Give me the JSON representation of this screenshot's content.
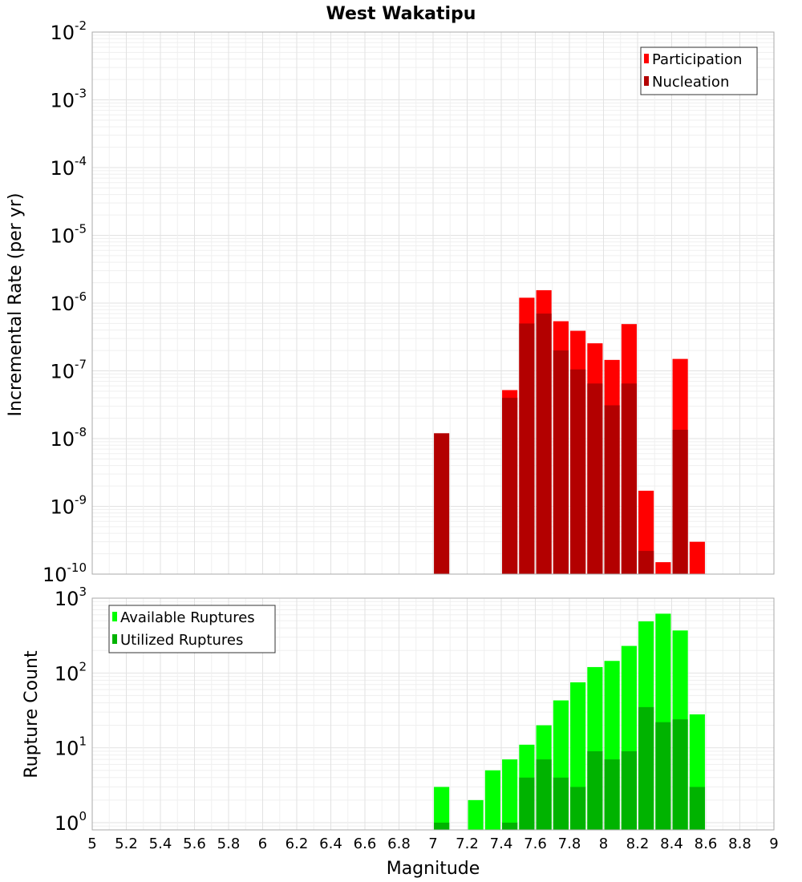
{
  "chart_data": [
    {
      "type": "bar",
      "title": "West Wakatipu",
      "ylabel": "Incremental Rate (per yr)",
      "xlabel": "",
      "yscale": "log",
      "ylim": [
        1e-10,
        0.01
      ],
      "xlim": [
        5,
        9
      ],
      "y_ticks": [
        {
          "base": "10",
          "exp": "-2",
          "value": 0.01
        },
        {
          "base": "10",
          "exp": "-3",
          "value": 0.001
        },
        {
          "base": "10",
          "exp": "-4",
          "value": 0.0001
        },
        {
          "base": "10",
          "exp": "-5",
          "value": 1e-05
        },
        {
          "base": "10",
          "exp": "-6",
          "value": 1e-06
        },
        {
          "base": "10",
          "exp": "-7",
          "value": 1e-07
        },
        {
          "base": "10",
          "exp": "-8",
          "value": 1e-08
        },
        {
          "base": "10",
          "exp": "-9",
          "value": 1e-09
        },
        {
          "base": "10",
          "exp": "-10",
          "value": 1e-10
        }
      ],
      "grid": true,
      "legend_position": "top-right",
      "bar_width": 0.09,
      "series": [
        {
          "name": "Participation",
          "color": "#ff0000",
          "x": [
            7.45,
            7.55,
            7.65,
            7.75,
            7.85,
            7.95,
            8.05,
            8.15,
            8.25,
            8.35,
            8.45,
            8.55
          ],
          "values": [
            5.2e-08,
            1.2e-06,
            1.55e-06,
            5.4e-07,
            3.9e-07,
            2.55e-07,
            1.45e-07,
            4.9e-07,
            1.7e-09,
            1.5e-10,
            1.5e-07,
            3e-10
          ]
        },
        {
          "name": "Nucleation",
          "color": "#b30000",
          "x": [
            7.05,
            7.45,
            7.55,
            7.65,
            7.75,
            7.85,
            7.95,
            8.05,
            8.15,
            8.25,
            8.45
          ],
          "values": [
            1.2e-08,
            4e-08,
            5e-07,
            7e-07,
            2e-07,
            1.05e-07,
            6.5e-08,
            3.1e-08,
            6.5e-08,
            2.2e-10,
            1.35e-08
          ]
        }
      ]
    },
    {
      "type": "bar",
      "title": "",
      "ylabel": "Rupture Count",
      "xlabel": "Magnitude",
      "yscale": "log",
      "ylim": [
        0.8,
        1000
      ],
      "xlim": [
        5,
        9
      ],
      "x_ticks": [
        "5",
        "5.2",
        "5.4",
        "5.6",
        "5.8",
        "6",
        "6.2",
        "6.4",
        "6.6",
        "6.8",
        "7",
        "7.2",
        "7.4",
        "7.6",
        "7.8",
        "8",
        "8.2",
        "8.4",
        "8.6",
        "8.8",
        "9"
      ],
      "y_ticks": [
        {
          "base": "10",
          "exp": "3",
          "value": 1000
        },
        {
          "base": "10",
          "exp": "2",
          "value": 100
        },
        {
          "base": "10",
          "exp": "1",
          "value": 10
        },
        {
          "base": "10",
          "exp": "0",
          "value": 1
        }
      ],
      "grid": true,
      "legend_position": "top-left",
      "bar_width": 0.09,
      "series": [
        {
          "name": "Available Ruptures",
          "color": "#00ff00",
          "x": [
            7.05,
            7.25,
            7.35,
            7.45,
            7.55,
            7.65,
            7.75,
            7.85,
            7.95,
            8.05,
            8.15,
            8.25,
            8.35,
            8.45,
            8.55
          ],
          "values": [
            3,
            2,
            5,
            7,
            11,
            20,
            43,
            75,
            120,
            145,
            230,
            490,
            620,
            370,
            28
          ]
        },
        {
          "name": "Utilized Ruptures",
          "color": "#00b300",
          "x": [
            7.05,
            7.45,
            7.55,
            7.65,
            7.75,
            7.85,
            7.95,
            8.05,
            8.15,
            8.25,
            8.35,
            8.45,
            8.55
          ],
          "values": [
            1,
            1,
            4,
            7,
            4,
            3,
            9,
            7,
            9,
            35,
            22,
            24,
            3
          ]
        }
      ]
    }
  ]
}
